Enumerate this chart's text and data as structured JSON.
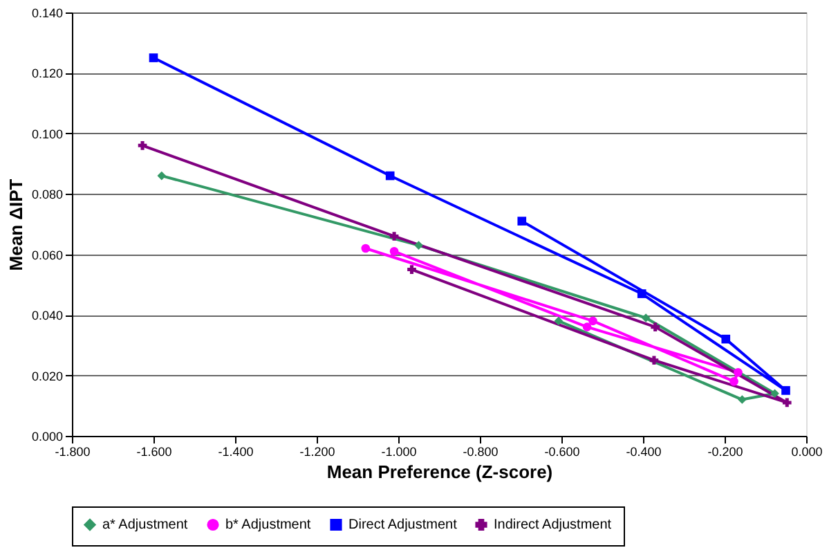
{
  "chart_data": {
    "type": "line",
    "xlabel": "Mean Preference (Z-score)",
    "ylabel": "Mean ΔIPT",
    "xlim": [
      -1.8,
      0
    ],
    "ylim": [
      0,
      0.14
    ],
    "xticks": [
      {
        "value": -1.8,
        "label": "-1.800"
      },
      {
        "value": -1.6,
        "label": "-1.600"
      },
      {
        "value": -1.4,
        "label": "-1.400"
      },
      {
        "value": -1.2,
        "label": "-1.200"
      },
      {
        "value": -1.0,
        "label": "-1.000"
      },
      {
        "value": -0.8,
        "label": "-0.800"
      },
      {
        "value": -0.6,
        "label": "-0.600"
      },
      {
        "value": -0.4,
        "label": "-0.400"
      },
      {
        "value": -0.2,
        "label": "-0.200"
      },
      {
        "value": 0,
        "label": "0.000"
      }
    ],
    "yticks": [
      {
        "value": 0,
        "label": "0.000"
      },
      {
        "value": 0.02,
        "label": "0.020"
      },
      {
        "value": 0.04,
        "label": "0.040"
      },
      {
        "value": 0.06,
        "label": "0.060"
      },
      {
        "value": 0.08,
        "label": "0.080"
      },
      {
        "value": 0.1,
        "label": "0.100"
      },
      {
        "value": 0.12,
        "label": "0.120"
      },
      {
        "value": 0.14,
        "label": "0.140"
      }
    ],
    "grid": "y",
    "legend": "bottom",
    "line_style": "solid",
    "series": [
      {
        "name": "a* Adjustment",
        "color": "#339966",
        "marker": "diamond",
        "x": [
          -1.58,
          -0.95,
          -0.393,
          -0.077,
          -0.157,
          -0.607
        ],
        "values": [
          0.086,
          0.063,
          0.039,
          0.014,
          0.012,
          0.038
        ]
      },
      {
        "name": "b* Adjustment",
        "color": "#ff00ff",
        "marker": "circle",
        "x": [
          -1.08,
          -0.523,
          -0.177,
          -0.167,
          -0.537,
          -1.01
        ],
        "values": [
          0.062,
          0.038,
          0.018,
          0.021,
          0.036,
          0.061
        ]
      },
      {
        "name": "Direct Adjustment",
        "color": "#0000ff",
        "marker": "square",
        "x": [
          -1.6,
          -1.02,
          -0.403,
          -0.05,
          -0.197,
          -0.697
        ],
        "values": [
          0.125,
          0.086,
          0.047,
          0.015,
          0.032,
          0.071
        ]
      },
      {
        "name": "Indirect Adjustment",
        "color": "#800080",
        "marker": "cross",
        "x": [
          -1.627,
          -1.01,
          -0.37,
          -0.047,
          -0.373,
          -0.967
        ],
        "values": [
          0.096,
          0.066,
          0.036,
          0.011,
          0.025,
          0.055
        ]
      }
    ]
  }
}
